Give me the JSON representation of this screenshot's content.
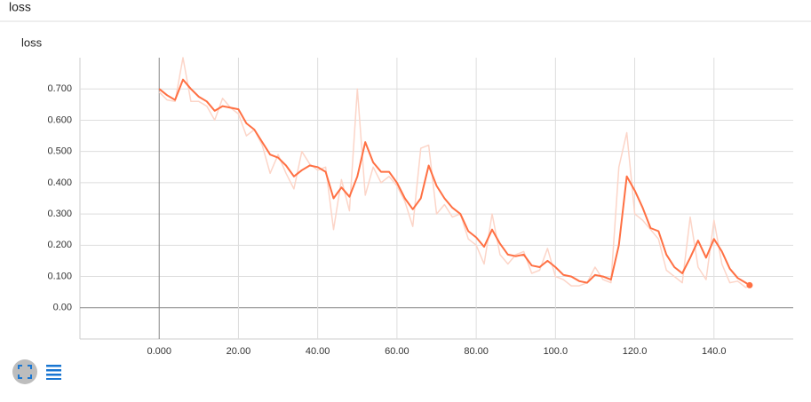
{
  "header": {
    "title": "loss"
  },
  "chart_data": {
    "type": "line",
    "title": "loss",
    "x": [
      0,
      2,
      4,
      6,
      8,
      10,
      12,
      14,
      16,
      18,
      20,
      22,
      24,
      26,
      28,
      30,
      32,
      34,
      36,
      38,
      40,
      42,
      44,
      46,
      48,
      50,
      52,
      54,
      56,
      58,
      60,
      62,
      64,
      66,
      68,
      70,
      72,
      74,
      76,
      78,
      80,
      82,
      84,
      86,
      88,
      90,
      92,
      94,
      96,
      98,
      100,
      102,
      104,
      106,
      108,
      110,
      112,
      114,
      116,
      118,
      120,
      122,
      124,
      126,
      128,
      130,
      132,
      134,
      136,
      138,
      140,
      142,
      144,
      146,
      148,
      149
    ],
    "series": [
      {
        "color": "#fcd5c8",
        "values": [
          0.69,
          0.665,
          0.66,
          0.8,
          0.66,
          0.66,
          0.645,
          0.6,
          0.67,
          0.64,
          0.62,
          0.55,
          0.57,
          0.52,
          0.43,
          0.49,
          0.43,
          0.38,
          0.5,
          0.46,
          0.44,
          0.45,
          0.25,
          0.41,
          0.31,
          0.7,
          0.36,
          0.45,
          0.4,
          0.42,
          0.39,
          0.34,
          0.26,
          0.51,
          0.52,
          0.3,
          0.33,
          0.29,
          0.3,
          0.22,
          0.2,
          0.14,
          0.3,
          0.17,
          0.14,
          0.17,
          0.18,
          0.11,
          0.12,
          0.19,
          0.1,
          0.09,
          0.07,
          0.07,
          0.08,
          0.13,
          0.09,
          0.08,
          0.45,
          0.56,
          0.3,
          0.28,
          0.25,
          0.22,
          0.12,
          0.1,
          0.08,
          0.29,
          0.13,
          0.09,
          0.28,
          0.14,
          0.08,
          0.085,
          0.065,
          0.07
        ]
      },
      {
        "color": "#ff7043",
        "values": [
          0.7,
          0.68,
          0.665,
          0.73,
          0.7,
          0.675,
          0.66,
          0.63,
          0.645,
          0.64,
          0.635,
          0.59,
          0.57,
          0.53,
          0.49,
          0.48,
          0.455,
          0.42,
          0.44,
          0.455,
          0.45,
          0.435,
          0.35,
          0.385,
          0.355,
          0.42,
          0.53,
          0.465,
          0.435,
          0.435,
          0.4,
          0.35,
          0.315,
          0.35,
          0.455,
          0.39,
          0.35,
          0.32,
          0.3,
          0.245,
          0.225,
          0.195,
          0.25,
          0.205,
          0.17,
          0.165,
          0.17,
          0.135,
          0.13,
          0.15,
          0.13,
          0.105,
          0.1,
          0.085,
          0.08,
          0.105,
          0.1,
          0.09,
          0.2,
          0.42,
          0.375,
          0.32,
          0.255,
          0.245,
          0.17,
          0.13,
          0.11,
          0.16,
          0.215,
          0.16,
          0.22,
          0.18,
          0.125,
          0.095,
          0.08,
          0.072
        ]
      }
    ],
    "xlim": [
      -20,
      160
    ],
    "ylim": [
      -0.1,
      0.8
    ],
    "xticks": [
      {
        "value": 0,
        "label": "0.000"
      },
      {
        "value": 20,
        "label": "20.00"
      },
      {
        "value": 40,
        "label": "40.00"
      },
      {
        "value": 60,
        "label": "60.00"
      },
      {
        "value": 80,
        "label": "80.00"
      },
      {
        "value": 100,
        "label": "100.0"
      },
      {
        "value": 120,
        "label": "120.0"
      },
      {
        "value": 140,
        "label": "140.0"
      }
    ],
    "yticks": [
      {
        "value": 0,
        "label": "0.00"
      },
      {
        "value": 0.1,
        "label": "0.100"
      },
      {
        "value": 0.2,
        "label": "0.200"
      },
      {
        "value": 0.3,
        "label": "0.300"
      },
      {
        "value": 0.4,
        "label": "0.400"
      },
      {
        "value": 0.5,
        "label": "0.500"
      },
      {
        "value": 0.6,
        "label": "0.600"
      },
      {
        "value": 0.7,
        "label": "0.700"
      }
    ],
    "grid": true
  }
}
